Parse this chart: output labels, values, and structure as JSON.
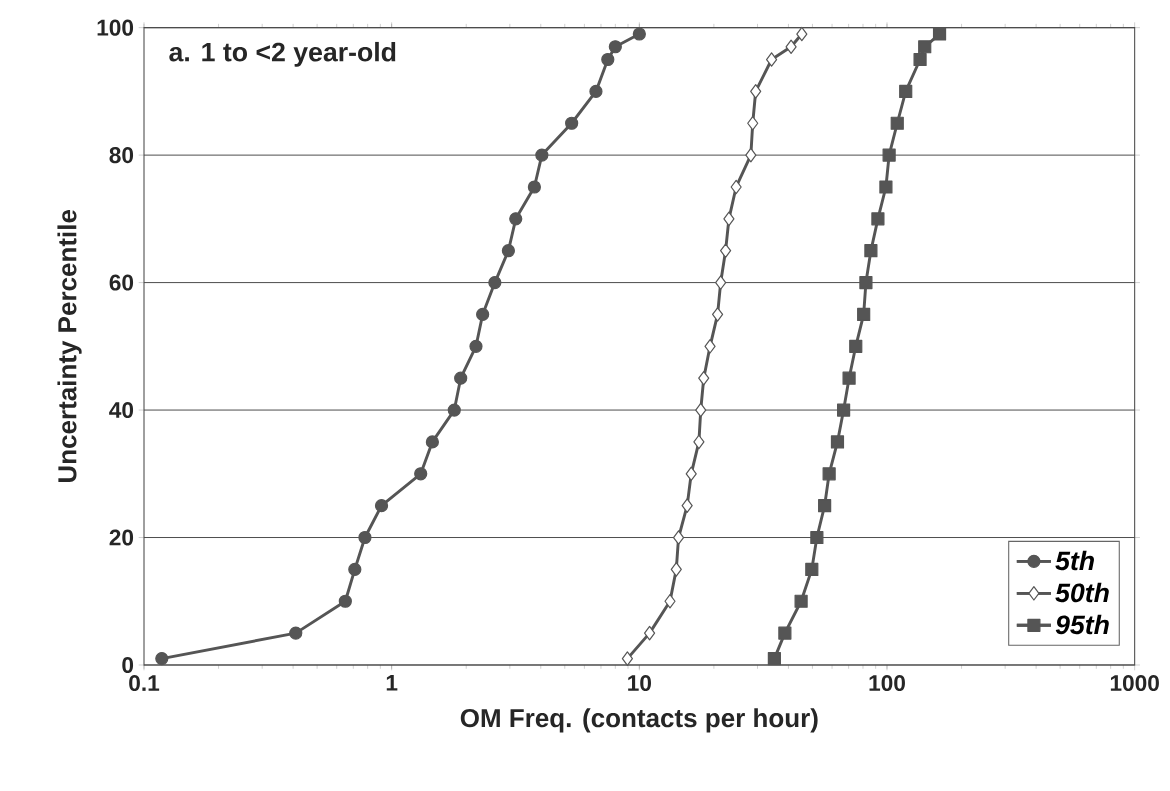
{
  "chart_data": {
    "type": "line",
    "title": "a. 1 to <2 year-old",
    "xlabel": "OM Freq. (contacts per hour)",
    "ylabel": "Uncertainty Percentile",
    "log": "x",
    "xlim": [
      0.1,
      1000
    ],
    "xticks": [
      0.1,
      1,
      10,
      100,
      1000
    ],
    "ylim": [
      0,
      100
    ],
    "yticks": [
      0,
      20,
      40,
      60,
      80,
      100
    ],
    "grid": "y",
    "legend": "bottom right",
    "line_style": "solid",
    "series": [
      {
        "name": "5th",
        "color": "#555555",
        "marker": "circle",
        "x": [
          0.118,
          0.41,
          0.65,
          0.71,
          0.78,
          0.91,
          1.31,
          1.46,
          1.79,
          1.9,
          2.19,
          2.33,
          2.61,
          2.96,
          3.17,
          3.77,
          4.04,
          5.33,
          6.68,
          7.46,
          8.0,
          10.0
        ],
        "values": [
          1,
          5,
          10,
          15,
          20,
          25,
          30,
          35,
          40,
          45,
          50,
          55,
          60,
          65,
          70,
          75,
          80,
          85,
          90,
          95,
          97,
          99
        ]
      },
      {
        "name": "50th",
        "color": "#555555",
        "marker": "diamond",
        "x": [
          8.95,
          11.0,
          13.3,
          14.1,
          14.4,
          15.6,
          16.2,
          17.4,
          17.7,
          18.2,
          19.3,
          20.7,
          21.3,
          22.3,
          23.0,
          24.6,
          28.2,
          28.7,
          29.5,
          34.2,
          41.0,
          45.3
        ],
        "values": [
          1,
          5,
          10,
          15,
          20,
          25,
          30,
          35,
          40,
          45,
          50,
          55,
          60,
          65,
          70,
          75,
          80,
          85,
          90,
          95,
          97,
          99
        ]
      },
      {
        "name": "95th",
        "color": "#555555",
        "marker": "square",
        "x": [
          35.1,
          38.7,
          45.0,
          49.7,
          52.1,
          56.0,
          58.4,
          63.1,
          66.8,
          70.3,
          74.8,
          80.5,
          82.2,
          86.1,
          91.9,
          99,
          102,
          110,
          119,
          136,
          142,
          163
        ],
        "values": [
          1,
          5,
          10,
          15,
          20,
          25,
          30,
          35,
          40,
          45,
          50,
          55,
          60,
          65,
          70,
          75,
          80,
          85,
          90,
          95,
          97,
          99
        ]
      }
    ]
  }
}
